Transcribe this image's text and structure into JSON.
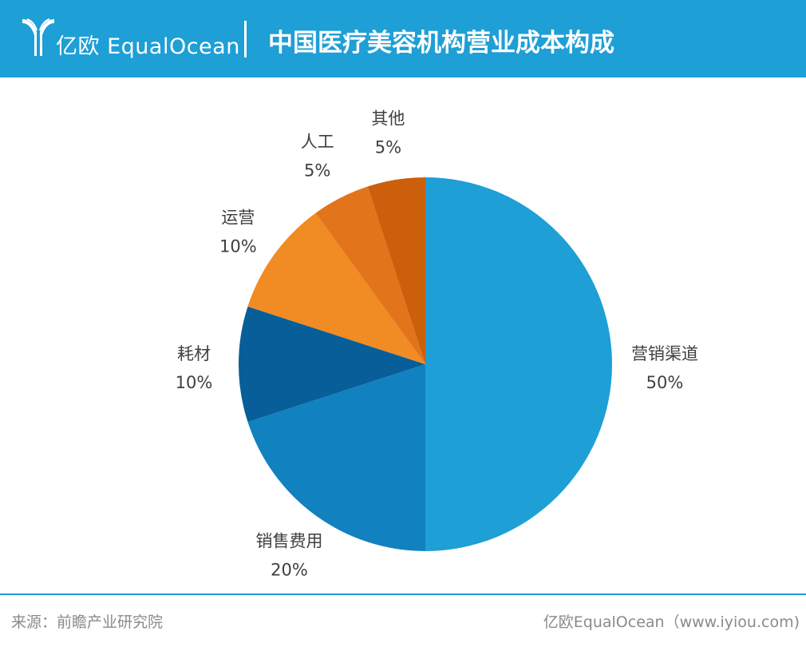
{
  "header": {
    "brand": "亿欧 EqualOcean",
    "title": "中国医疗美容机构营业成本构成",
    "logo_icon": "equalocean-y-logo-icon"
  },
  "colors": {
    "header_bg": "#1e9fd6",
    "text": "#404040"
  },
  "chart_data": {
    "type": "pie",
    "title": "中国医疗美容机构营业成本构成",
    "start": "12 o'clock, clockwise",
    "slices": [
      {
        "label": "营销渠道",
        "value": 50,
        "display": "50%",
        "color": "#1e9fd6"
      },
      {
        "label": "销售费用",
        "value": 20,
        "display": "20%",
        "color": "#1181bf"
      },
      {
        "label": "耗材",
        "value": 10,
        "display": "10%",
        "color": "#075e99"
      },
      {
        "label": "运营",
        "value": 10,
        "display": "10%",
        "color": "#f18b24"
      },
      {
        "label": "人工",
        "value": 5,
        "display": "5%",
        "color": "#e2741b"
      },
      {
        "label": "其他",
        "value": 5,
        "display": "5%",
        "color": "#cc5f0c"
      }
    ]
  },
  "footer": {
    "source": "来源：前瞻产业研究院",
    "credit": "亿欧EqualOcean（www.iyiou.com)"
  }
}
